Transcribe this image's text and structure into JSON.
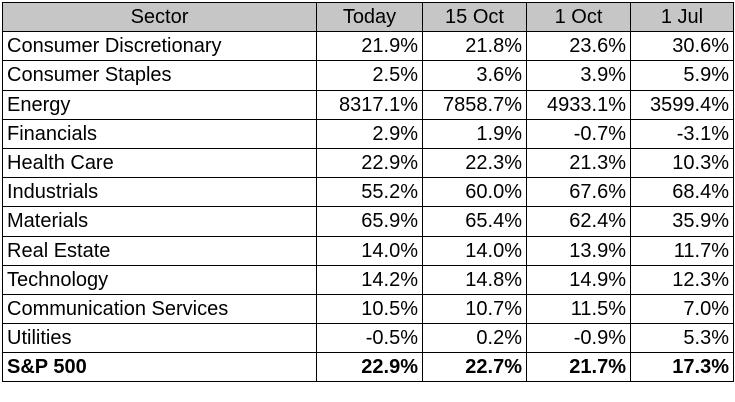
{
  "chart_data": {
    "type": "table",
    "columns": [
      "Sector",
      "Today",
      "15 Oct",
      "1 Oct",
      "1 Jul"
    ],
    "rows": [
      {
        "sector": "Consumer Discretionary",
        "values": [
          "21.9%",
          "21.8%",
          "23.6%",
          "30.6%"
        ]
      },
      {
        "sector": "Consumer Staples",
        "values": [
          "2.5%",
          "3.6%",
          "3.9%",
          "5.9%"
        ]
      },
      {
        "sector": "Energy",
        "values": [
          "8317.1%",
          "7858.7%",
          "4933.1%",
          "3599.4%"
        ]
      },
      {
        "sector": "Financials",
        "values": [
          "2.9%",
          "1.9%",
          "-0.7%",
          "-3.1%"
        ]
      },
      {
        "sector": "Health Care",
        "values": [
          "22.9%",
          "22.3%",
          "21.3%",
          "10.3%"
        ]
      },
      {
        "sector": "Industrials",
        "values": [
          "55.2%",
          "60.0%",
          "67.6%",
          "68.4%"
        ]
      },
      {
        "sector": "Materials",
        "values": [
          "65.9%",
          "65.4%",
          "62.4%",
          "35.9%"
        ]
      },
      {
        "sector": "Real Estate",
        "values": [
          "14.0%",
          "14.0%",
          "13.9%",
          "11.7%"
        ]
      },
      {
        "sector": "Technology",
        "values": [
          "14.2%",
          "14.8%",
          "14.9%",
          "12.3%"
        ]
      },
      {
        "sector": "Communication Services",
        "values": [
          "10.5%",
          "10.7%",
          "11.5%",
          "7.0%"
        ]
      },
      {
        "sector": "Utilities",
        "values": [
          "-0.5%",
          "0.2%",
          "-0.9%",
          "5.3%"
        ]
      }
    ],
    "total": {
      "sector": "S&P 500",
      "values": [
        "22.9%",
        "22.7%",
        "21.7%",
        "17.3%"
      ]
    }
  },
  "colors": {
    "header_background": "#c6c6c6",
    "border": "#000000",
    "text": "#000000",
    "background": "#ffffff"
  }
}
